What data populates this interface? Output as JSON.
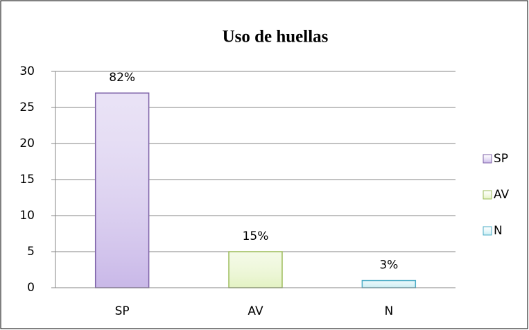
{
  "chart_data": {
    "type": "bar",
    "title": "Uso de huellas",
    "categories": [
      "SP",
      "AV",
      "N"
    ],
    "values": [
      27,
      5,
      1
    ],
    "value_labels": [
      "82%",
      "15%",
      "3%"
    ],
    "colors": [
      "#c9b8e8",
      "#e3f2c2",
      "#c7edf3"
    ],
    "edge_colors": [
      "#7f63a9",
      "#9bbb59",
      "#4bacc6"
    ],
    "ylim": [
      0,
      30
    ],
    "yticks": [
      0,
      5,
      10,
      15,
      20,
      25,
      30
    ],
    "grid": true,
    "legend": "right"
  }
}
